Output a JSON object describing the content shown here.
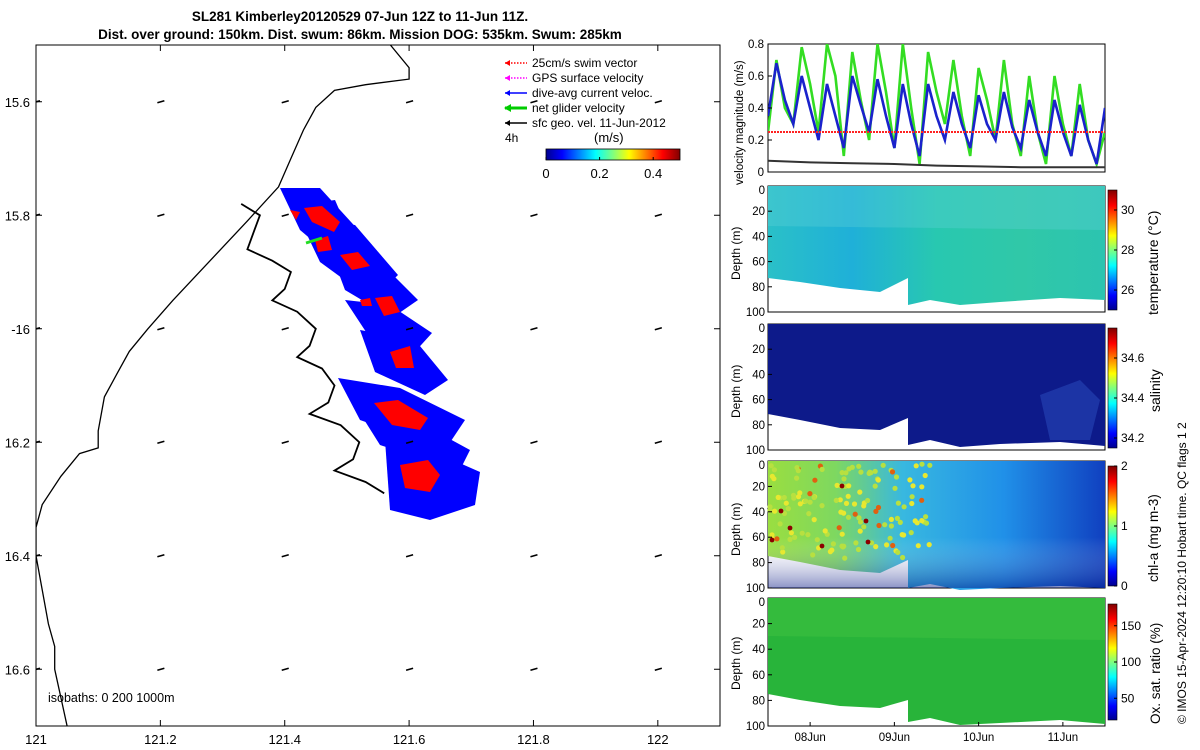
{
  "header": {
    "title_line1": "SL281 Kimberley20120529 07-Jun 12Z to 11-Jun 11Z.",
    "title_line2": "Dist. over ground: 150km. Dist. swum: 86km. Mission DOG: 535km. Swum: 285km"
  },
  "footer": {
    "credit": "© IMOS 15-Apr-2024 12:20:10 Hobart time. QC flags 1  2"
  },
  "colors": {
    "track_fill": "#0000ff",
    "swim_patch": "#ff0000",
    "land_line": "#000000"
  },
  "chart_data": [
    {
      "type": "map",
      "xlim": [
        121.0,
        122.1
      ],
      "ylim": [
        -16.7,
        -15.5
      ],
      "x_ticks": [
        121,
        121.2,
        121.4,
        121.6,
        121.8,
        122
      ],
      "x_tick_labels": [
        "121",
        "121.2",
        "121.4",
        "121.6",
        "121.8",
        "122"
      ],
      "y_ticks": [
        -15.6,
        -15.8,
        -16.0,
        -16.2,
        -16.4,
        -16.6
      ],
      "y_tick_labels": [
        "15.6",
        "15.8",
        "-16",
        "16.2",
        "16.4",
        "16.6"
      ],
      "legend": [
        {
          "label": "25cm/s swim vector",
          "color": "#ff0000",
          "style": "dotted-arrow"
        },
        {
          "label": "GPS surface velocity",
          "color": "#ff00ff",
          "style": "dotted-arrow"
        },
        {
          "label": "dive-avg current veloc.",
          "color": "#0000ff",
          "style": "arrow"
        },
        {
          "label": "net glider velocity",
          "color": "#00cc00",
          "style": "thick-arrow"
        },
        {
          "label": "sfc geo. vel. 11-Jun-2012",
          "color": "#000000",
          "style": "arrow"
        }
      ],
      "interval_label": "4h",
      "colorbar": {
        "label": "(m/s)",
        "ticks": [
          "0",
          "0.2",
          "0.4"
        ],
        "range": [
          0,
          0.5
        ],
        "colormap": "jet"
      },
      "isobaths_label": "isobaths: 0   200  1000m",
      "coastline": [
        [
          121.57,
          -15.5
        ],
        [
          121.6,
          -15.54
        ],
        [
          121.6,
          -15.56
        ],
        [
          121.53,
          -15.57
        ],
        [
          121.48,
          -15.58
        ],
        [
          121.45,
          -15.61
        ],
        [
          121.43,
          -15.65
        ],
        [
          121.41,
          -15.7
        ],
        [
          121.39,
          -15.75
        ],
        [
          121.34,
          -15.81
        ],
        [
          121.28,
          -15.88
        ],
        [
          121.22,
          -15.95
        ],
        [
          121.18,
          -16.0
        ],
        [
          121.15,
          -16.04
        ],
        [
          121.13,
          -16.08
        ],
        [
          121.11,
          -16.12
        ],
        [
          121.1,
          -16.18
        ],
        [
          121.1,
          -16.21
        ],
        [
          121.07,
          -16.22
        ],
        [
          121.04,
          -16.26
        ],
        [
          121.01,
          -16.31
        ],
        [
          121.0,
          -16.35
        ],
        [
          121.0,
          -16.4
        ],
        [
          121.01,
          -16.46
        ],
        [
          121.02,
          -16.52
        ],
        [
          121.03,
          -16.56
        ],
        [
          121.03,
          -16.6
        ],
        [
          121.04,
          -16.65
        ],
        [
          121.05,
          -16.7
        ]
      ],
      "glider_track": [
        [
          121.33,
          -15.78
        ],
        [
          121.36,
          -15.8
        ],
        [
          121.35,
          -15.83
        ],
        [
          121.34,
          -15.86
        ],
        [
          121.38,
          -15.88
        ],
        [
          121.41,
          -15.9
        ],
        [
          121.4,
          -15.93
        ],
        [
          121.38,
          -15.95
        ],
        [
          121.42,
          -15.97
        ],
        [
          121.45,
          -16.0
        ],
        [
          121.44,
          -16.03
        ],
        [
          121.42,
          -16.05
        ],
        [
          121.46,
          -16.07
        ],
        [
          121.48,
          -16.1
        ],
        [
          121.47,
          -16.13
        ],
        [
          121.44,
          -16.15
        ],
        [
          121.49,
          -16.17
        ],
        [
          121.52,
          -16.2
        ],
        [
          121.51,
          -16.23
        ],
        [
          121.48,
          -16.25
        ],
        [
          121.53,
          -16.27
        ],
        [
          121.56,
          -16.29
        ]
      ],
      "geo_velocity_grid": {
        "lons": [
          121.0,
          121.2,
          121.4,
          121.6,
          121.8,
          122.0
        ],
        "lats": [
          -15.6,
          -15.8,
          -16.0,
          -16.2,
          -16.4,
          -16.6
        ]
      }
    },
    {
      "type": "line",
      "ylabel": "velocity magnitude (m/s)",
      "ylim": [
        0,
        0.8
      ],
      "y_ticks": [
        "0",
        "0.2",
        "0.4",
        "0.6",
        "0.8"
      ],
      "x_range_days": [
        0,
        4.0
      ],
      "series": [
        {
          "name": "net glider velocity",
          "color": "#33dd22",
          "x_days": [
            0,
            0.1,
            0.2,
            0.3,
            0.4,
            0.5,
            0.6,
            0.7,
            0.8,
            0.9,
            1.0,
            1.1,
            1.2,
            1.3,
            1.4,
            1.5,
            1.6,
            1.7,
            1.8,
            1.9,
            2.0,
            2.1,
            2.2,
            2.3,
            2.4,
            2.5,
            2.6,
            2.7,
            2.8,
            2.9,
            3.0,
            3.1,
            3.2,
            3.3,
            3.4,
            3.5,
            3.6,
            3.7,
            3.8,
            3.9,
            4.0
          ],
          "values": [
            0.25,
            0.7,
            0.4,
            0.3,
            0.78,
            0.55,
            0.25,
            0.8,
            0.6,
            0.1,
            0.75,
            0.45,
            0.2,
            0.8,
            0.5,
            0.15,
            0.8,
            0.4,
            0.05,
            0.75,
            0.5,
            0.3,
            0.7,
            0.35,
            0.1,
            0.65,
            0.45,
            0.2,
            0.7,
            0.3,
            0.1,
            0.6,
            0.25,
            0.05,
            0.6,
            0.3,
            0.1,
            0.55,
            0.2,
            0.05,
            0.25
          ]
        },
        {
          "name": "dive-avg current veloc.",
          "color": "#1a22cc",
          "x_days": [
            0,
            0.1,
            0.2,
            0.3,
            0.4,
            0.5,
            0.6,
            0.7,
            0.8,
            0.9,
            1.0,
            1.1,
            1.2,
            1.3,
            1.4,
            1.5,
            1.6,
            1.7,
            1.8,
            1.9,
            2.0,
            2.1,
            2.2,
            2.3,
            2.4,
            2.5,
            2.6,
            2.7,
            2.8,
            2.9,
            3.0,
            3.1,
            3.2,
            3.3,
            3.4,
            3.5,
            3.6,
            3.7,
            3.8,
            3.9,
            4.0
          ],
          "values": [
            0.35,
            0.68,
            0.45,
            0.3,
            0.6,
            0.4,
            0.2,
            0.55,
            0.35,
            0.15,
            0.6,
            0.42,
            0.25,
            0.58,
            0.35,
            0.15,
            0.55,
            0.3,
            0.1,
            0.55,
            0.35,
            0.2,
            0.5,
            0.3,
            0.15,
            0.48,
            0.3,
            0.2,
            0.5,
            0.28,
            0.15,
            0.45,
            0.25,
            0.1,
            0.45,
            0.25,
            0.1,
            0.42,
            0.2,
            0.05,
            0.4
          ]
        },
        {
          "name": "25cm/s swim vector",
          "color": "#ff2222",
          "x_days": [
            0,
            4.0
          ],
          "values": [
            0.25,
            0.25
          ]
        },
        {
          "name": "sfc geo. vel.",
          "color": "#333333",
          "x_days": [
            0,
            0.5,
            1.0,
            1.5,
            2.0,
            2.5,
            3.0,
            3.5,
            4.0
          ],
          "values": [
            0.07,
            0.06,
            0.055,
            0.05,
            0.04,
            0.035,
            0.03,
            0.03,
            0.03
          ]
        }
      ]
    },
    {
      "type": "heatmap",
      "ylabel": "Depth (m)",
      "cbar_label": "temperature (°C)",
      "cbar_ticks": [
        "26",
        "28",
        "30"
      ],
      "cbar_range": [
        25,
        31
      ],
      "y_ticks": [
        "20",
        "40",
        "60",
        "80",
        "100"
      ],
      "depth_range": [
        0,
        100
      ],
      "value_range": [
        26,
        28
      ]
    },
    {
      "type": "heatmap",
      "ylabel": "Depth (m)",
      "cbar_label": "salinity",
      "cbar_ticks": [
        "34.2",
        "34.4",
        "34.6"
      ],
      "cbar_range": [
        34.15,
        34.75
      ],
      "y_ticks": [
        "20",
        "40",
        "60",
        "80",
        "100"
      ],
      "depth_range": [
        0,
        100
      ],
      "value_range": [
        34.2,
        34.3
      ]
    },
    {
      "type": "heatmap",
      "ylabel": "Depth (m)",
      "cbar_label": "chl-a (mg m-3)",
      "cbar_ticks": [
        "0",
        "1",
        "2"
      ],
      "cbar_range": [
        0,
        2
      ],
      "y_ticks": [
        "20",
        "40",
        "60",
        "80",
        "100"
      ],
      "depth_range": [
        0,
        100
      ],
      "value_range": [
        0.2,
        1.6
      ]
    },
    {
      "type": "heatmap",
      "ylabel": "Depth (m)",
      "cbar_label": "Ox. sat. ratio (%)",
      "cbar_ticks": [
        "50",
        "100",
        "150"
      ],
      "cbar_range": [
        20,
        180
      ],
      "y_ticks": [
        "20",
        "40",
        "60",
        "80",
        "100"
      ],
      "depth_range": [
        0,
        100
      ],
      "value_range": [
        90,
        110
      ],
      "x_tick_labels": [
        "08Jun",
        "09Jun",
        "10Jun",
        "11Jun"
      ]
    }
  ]
}
